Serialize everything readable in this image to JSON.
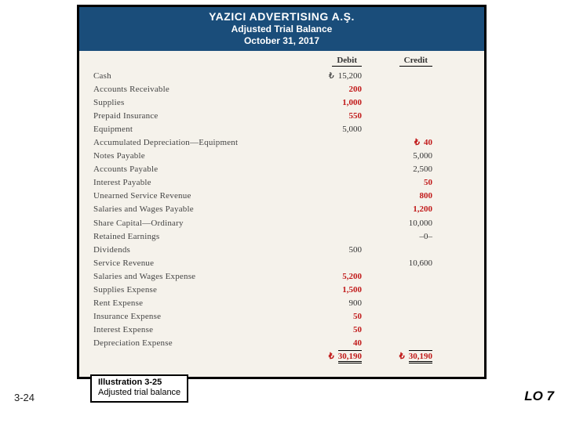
{
  "header": {
    "company": "YAZICI ADVERTISING A.Ş.",
    "title": "Adjusted Trial Balance",
    "date": "October 31, 2017"
  },
  "columns": {
    "debit": "Debit",
    "credit": "Credit"
  },
  "currency_symbol": "₺",
  "rows": [
    {
      "account": "Cash",
      "debit": "15,200",
      "credit": "",
      "debit_sym": true,
      "red": false
    },
    {
      "account": "Accounts Receivable",
      "debit": "200",
      "credit": "",
      "red": true
    },
    {
      "account": "Supplies",
      "debit": "1,000",
      "credit": "",
      "red": true
    },
    {
      "account": "Prepaid Insurance",
      "debit": "550",
      "credit": "",
      "red": true
    },
    {
      "account": "Equipment",
      "debit": "5,000",
      "credit": "",
      "red": false
    },
    {
      "account": "Accumulated Depreciation—Equipment",
      "debit": "",
      "credit": "40",
      "credit_sym": true,
      "red": true
    },
    {
      "account": "Notes Payable",
      "debit": "",
      "credit": "5,000",
      "red": false
    },
    {
      "account": "Accounts Payable",
      "debit": "",
      "credit": "2,500",
      "red": false
    },
    {
      "account": "Interest Payable",
      "debit": "",
      "credit": "50",
      "red": true
    },
    {
      "account": "Unearned Service Revenue",
      "debit": "",
      "credit": "800",
      "red": true
    },
    {
      "account": "Salaries and Wages Payable",
      "debit": "",
      "credit": "1,200",
      "red": true
    },
    {
      "account": "Share Capital—Ordinary",
      "debit": "",
      "credit": "10,000",
      "red": false
    },
    {
      "account": "Retained Earnings",
      "debit": "",
      "credit": "–0–",
      "red": false
    },
    {
      "account": "Dividends",
      "debit": "500",
      "credit": "",
      "red": false
    },
    {
      "account": "Service Revenue",
      "debit": "",
      "credit": "10,600",
      "red": false
    },
    {
      "account": "Salaries and Wages Expense",
      "debit": "5,200",
      "credit": "",
      "red": true
    },
    {
      "account": "Supplies Expense",
      "debit": "1,500",
      "credit": "",
      "red": true
    },
    {
      "account": "Rent Expense",
      "debit": "900",
      "credit": "",
      "red": false
    },
    {
      "account": "Insurance Expense",
      "debit": "50",
      "credit": "",
      "red": true
    },
    {
      "account": "Interest Expense",
      "debit": "50",
      "credit": "",
      "red": true
    },
    {
      "account": "Depreciation Expense",
      "debit": "40",
      "credit": "",
      "red": true
    }
  ],
  "totals": {
    "debit": "30,190",
    "credit": "30,190"
  },
  "illustration": {
    "title": "Illustration 3-25",
    "caption": "Adjusted trial balance"
  },
  "page_number": "3-24",
  "learning_objective": "LO 7",
  "colors": {
    "header_bg": "#1a4d7a",
    "header_text": "#ffffff",
    "body_bg": "#f5f2eb",
    "red_text": "#c11a1a",
    "border": "#000000"
  }
}
